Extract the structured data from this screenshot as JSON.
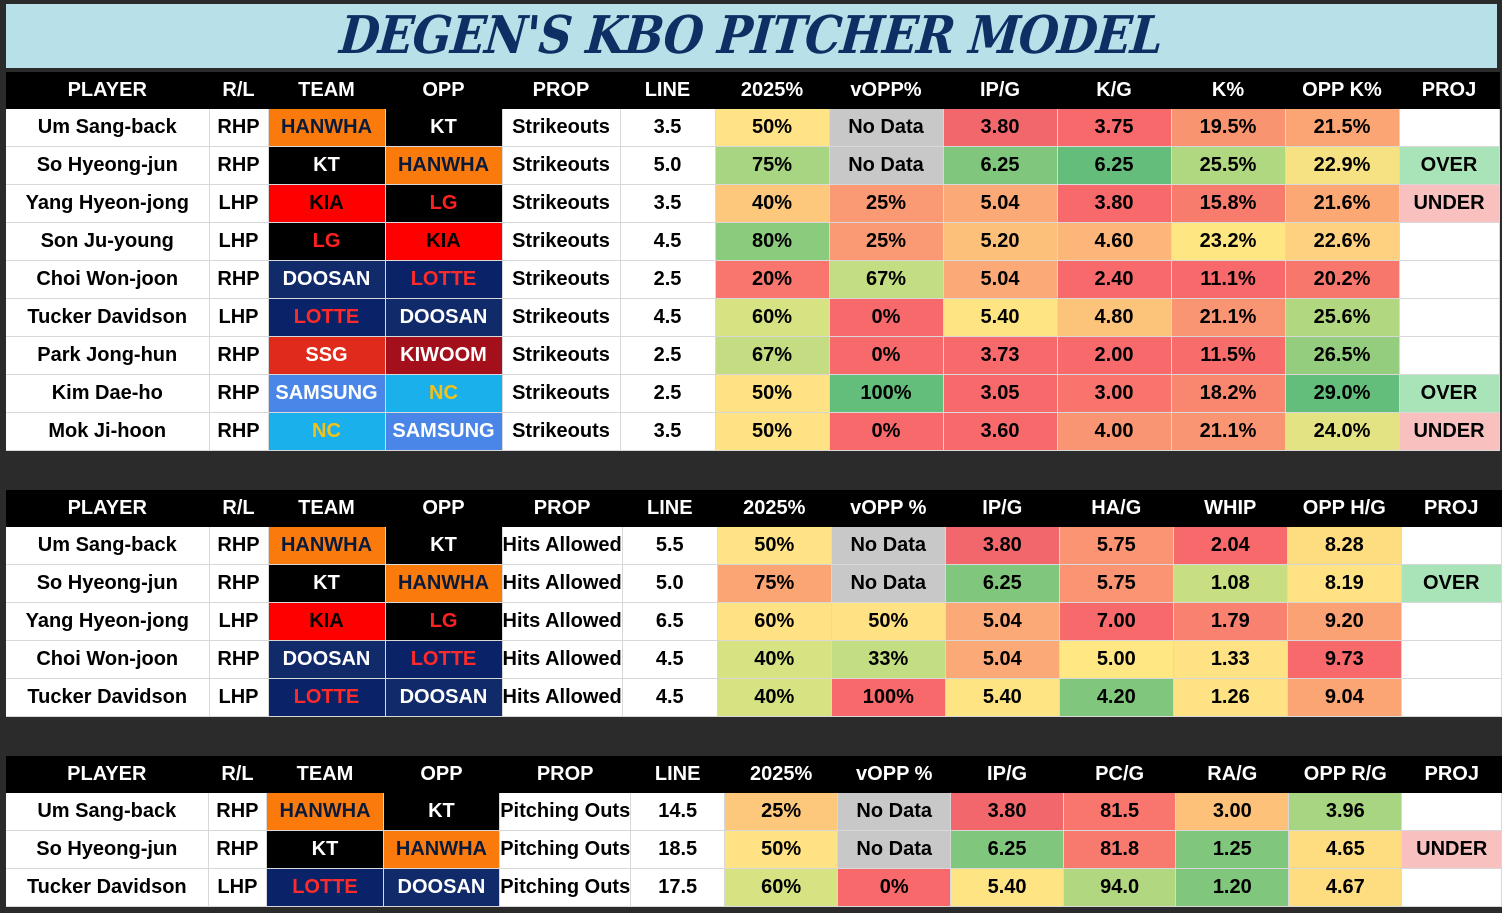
{
  "title": "DEGEN'S KBO PITCHER MODEL",
  "colors": {
    "header_bg": "#000000",
    "title_bg": "#b7e0e8",
    "title_text": "#0d2f63",
    "over": "#a8e4b8",
    "under": "#f8c1c0"
  },
  "teams": {
    "HANWHA": {
      "bg": "#fb7a0c",
      "fg": "#0a1a3a"
    },
    "KT": {
      "bg": "#000000",
      "fg": "#ffffff"
    },
    "KIA": {
      "bg": "#ff0000",
      "fg": "#000000"
    },
    "LG": {
      "bg": "#000000",
      "fg": "#ff2020"
    },
    "DOOSAN": {
      "bg": "#112a6a",
      "fg": "#ffffff"
    },
    "LOTTE": {
      "bg": "#0a2268",
      "fg": "#ff2a2a"
    },
    "SSG": {
      "bg": "#e02a1c",
      "fg": "#ffffff"
    },
    "KIWOOM": {
      "bg": "#a30f1a",
      "fg": "#ffffff"
    },
    "SAMSUNG": {
      "bg": "#4a86e8",
      "fg": "#ffffff"
    },
    "NC": {
      "bg": "#1ab0ec",
      "fg": "#f2c21a"
    }
  },
  "sections": [
    {
      "headers": [
        "PLAYER",
        "R/L",
        "TEAM",
        "OPP",
        "PROP",
        "LINE",
        "2025%",
        "vOPP%",
        "IP/G",
        "K/G",
        "K%",
        "OPP K%",
        "PROJ"
      ],
      "rows": [
        {
          "cells": [
            "Um Sang-back",
            "RHP",
            "HANWHA",
            "KT",
            "Strikeouts",
            "3.5",
            "50%",
            "No Data",
            "3.80",
            "3.75",
            "19.5%",
            "21.5%",
            ""
          ],
          "bg": [
            "#ffe386",
            "#c8c8c8",
            "#f2676b",
            "#f8696b",
            "#f8946f",
            "#fba474",
            ""
          ]
        },
        {
          "cells": [
            "So Hyeong-jun",
            "RHP",
            "KT",
            "HANWHA",
            "Strikeouts",
            "5.0",
            "75%",
            "No Data",
            "6.25",
            "6.25",
            "25.5%",
            "22.9%",
            "OVER"
          ],
          "bg": [
            "#a8d581",
            "#c8c8c8",
            "#80c67d",
            "#65bd7c",
            "#b0d880",
            "#f6e283",
            "over"
          ]
        },
        {
          "cells": [
            "Yang Hyeon-jong",
            "LHP",
            "KIA",
            "LG",
            "Strikeouts",
            "3.5",
            "40%",
            "25%",
            "5.04",
            "3.80",
            "15.8%",
            "21.6%",
            "UNDER"
          ],
          "bg": [
            "#fdc87c",
            "#fa9a74",
            "#fbaa77",
            "#f8696b",
            "#f87c6e",
            "#fba875",
            "under"
          ]
        },
        {
          "cells": [
            "Son Ju-young",
            "LHP",
            "LG",
            "KIA",
            "Strikeouts",
            "4.5",
            "80%",
            "25%",
            "5.20",
            "4.60",
            "23.2%",
            "22.6%",
            ""
          ],
          "bg": [
            "#8acb7e",
            "#fa9a74",
            "#fdc07a",
            "#fcb679",
            "#fee683",
            "#fdd17f",
            ""
          ]
        },
        {
          "cells": [
            "Choi Won-joon",
            "RHP",
            "DOOSAN",
            "LOTTE",
            "Strikeouts",
            "2.5",
            "20%",
            "67%",
            "5.04",
            "2.40",
            "11.1%",
            "20.2%",
            ""
          ],
          "bg": [
            "#f8766d",
            "#c3dd82",
            "#fbaa77",
            "#f8696b",
            "#f8696b",
            "#f8776d",
            ""
          ]
        },
        {
          "cells": [
            "Tucker Davidson",
            "LHP",
            "LOTTE",
            "DOOSAN",
            "Strikeouts",
            "4.5",
            "60%",
            "0%",
            "5.40",
            "4.80",
            "21.1%",
            "25.6%",
            ""
          ],
          "bg": [
            "#d7e283",
            "#f8696b",
            "#fee483",
            "#fcc47a",
            "#fa9573",
            "#b1d880",
            ""
          ]
        },
        {
          "cells": [
            "Park Jong-hun",
            "RHP",
            "SSG",
            "KIWOOM",
            "Strikeouts",
            "2.5",
            "67%",
            "0%",
            "3.73",
            "2.00",
            "11.5%",
            "26.5%",
            ""
          ],
          "bg": [
            "#c4dd82",
            "#f8696b",
            "#f8696b",
            "#f8696b",
            "#f86c6b",
            "#95cd7e",
            ""
          ]
        },
        {
          "cells": [
            "Kim Dae-ho",
            "RHP",
            "SAMSUNG",
            "NC",
            "Strikeouts",
            "2.5",
            "50%",
            "100%",
            "3.05",
            "3.00",
            "18.2%",
            "29.0%",
            "OVER"
          ],
          "bg": [
            "#fee283",
            "#63be7b",
            "#f8696b",
            "#f8746d",
            "#f98770",
            "#63be7b",
            "over"
          ]
        },
        {
          "cells": [
            "Mok Ji-hoon",
            "RHP",
            "NC",
            "SAMSUNG",
            "Strikeouts",
            "3.5",
            "50%",
            "0%",
            "3.60",
            "4.00",
            "21.1%",
            "24.0%",
            "UNDER"
          ],
          "bg": [
            "#fee283",
            "#f8696b",
            "#f8696b",
            "#fa9573",
            "#fa9573",
            "#e4e383",
            "under"
          ]
        }
      ]
    },
    {
      "headers": [
        "PLAYER",
        "R/L",
        "TEAM",
        "OPP",
        "PROP",
        "LINE",
        "2025%",
        "vOPP %",
        "IP/G",
        "HA/G",
        "WHIP",
        "OPP H/G",
        "PROJ"
      ],
      "rows": [
        {
          "cells": [
            "Um Sang-back",
            "RHP",
            "HANWHA",
            "KT",
            "Hits Allowed",
            "5.5",
            "50%",
            "No Data",
            "3.80",
            "5.75",
            "2.04",
            "8.28",
            ""
          ],
          "bg": [
            "#ffe386",
            "#c8c8c8",
            "#f2676b",
            "#fa9473",
            "#f8696b",
            "#fedd81",
            ""
          ]
        },
        {
          "cells": [
            "So Hyeong-jun",
            "RHP",
            "KT",
            "HANWHA",
            "Hits Allowed",
            "5.0",
            "75%",
            "No Data",
            "6.25",
            "5.75",
            "1.08",
            "8.19",
            "OVER"
          ],
          "bg": [
            "#fba474",
            "#c8c8c8",
            "#80c67d",
            "#fa9473",
            "#c7df82",
            "#fee283",
            "over"
          ]
        },
        {
          "cells": [
            "Yang Hyeon-jong",
            "LHP",
            "KIA",
            "LG",
            "Hits Allowed",
            "6.5",
            "60%",
            "50%",
            "5.04",
            "7.00",
            "1.79",
            "9.20",
            ""
          ],
          "bg": [
            "#fee283",
            "#fee283",
            "#fbaa77",
            "#f8696b",
            "#f8816f",
            "#fba274",
            ""
          ]
        },
        {
          "cells": [
            "Choi Won-joon",
            "RHP",
            "DOOSAN",
            "LOTTE",
            "Hits Allowed",
            "4.5",
            "40%",
            "33%",
            "5.04",
            "5.00",
            "1.33",
            "9.73",
            ""
          ],
          "bg": [
            "#d7e283",
            "#c3dd82",
            "#fbaa77",
            "#ffe784",
            "#fee283",
            "#f8696b",
            ""
          ]
        },
        {
          "cells": [
            "Tucker Davidson",
            "LHP",
            "LOTTE",
            "DOOSAN",
            "Hits Allowed",
            "4.5",
            "40%",
            "100%",
            "5.40",
            "4.20",
            "1.26",
            "9.04",
            ""
          ],
          "bg": [
            "#d7e283",
            "#f8696b",
            "#fee483",
            "#80c67d",
            "#fee283",
            "#fba474",
            ""
          ]
        }
      ]
    },
    {
      "headers": [
        "PLAYER",
        "R/L",
        "TEAM",
        "OPP",
        "PROP",
        "LINE",
        "2025%",
        "vOPP %",
        "IP/G",
        "PC/G",
        "RA/G",
        "OPP R/G",
        "PROJ"
      ],
      "rows": [
        {
          "cells": [
            "Um Sang-back",
            "RHP",
            "HANWHA",
            "KT",
            "Pitching Outs",
            "14.5",
            "25%",
            "No Data",
            "3.80",
            "81.5",
            "3.00",
            "3.96",
            ""
          ],
          "bg": [
            "#fdc87c",
            "#c8c8c8",
            "#f2676b",
            "#f8766d",
            "#fdc17a",
            "#a8d581",
            ""
          ]
        },
        {
          "cells": [
            "So Hyeong-jun",
            "RHP",
            "KT",
            "HANWHA",
            "Pitching Outs",
            "18.5",
            "50%",
            "No Data",
            "6.25",
            "81.8",
            "1.25",
            "4.65",
            "UNDER"
          ],
          "bg": [
            "#fee283",
            "#c8c8c8",
            "#80c67d",
            "#f8796e",
            "#80c67d",
            "#fedd81",
            "under"
          ]
        },
        {
          "cells": [
            "Tucker Davidson",
            "LHP",
            "LOTTE",
            "DOOSAN",
            "Pitching Outs",
            "17.5",
            "60%",
            "0%",
            "5.40",
            "94.0",
            "1.20",
            "4.67",
            ""
          ],
          "bg": [
            "#d7e283",
            "#f8696b",
            "#fee483",
            "#b1d880",
            "#80c67d",
            "#fedd81",
            ""
          ]
        }
      ]
    }
  ]
}
